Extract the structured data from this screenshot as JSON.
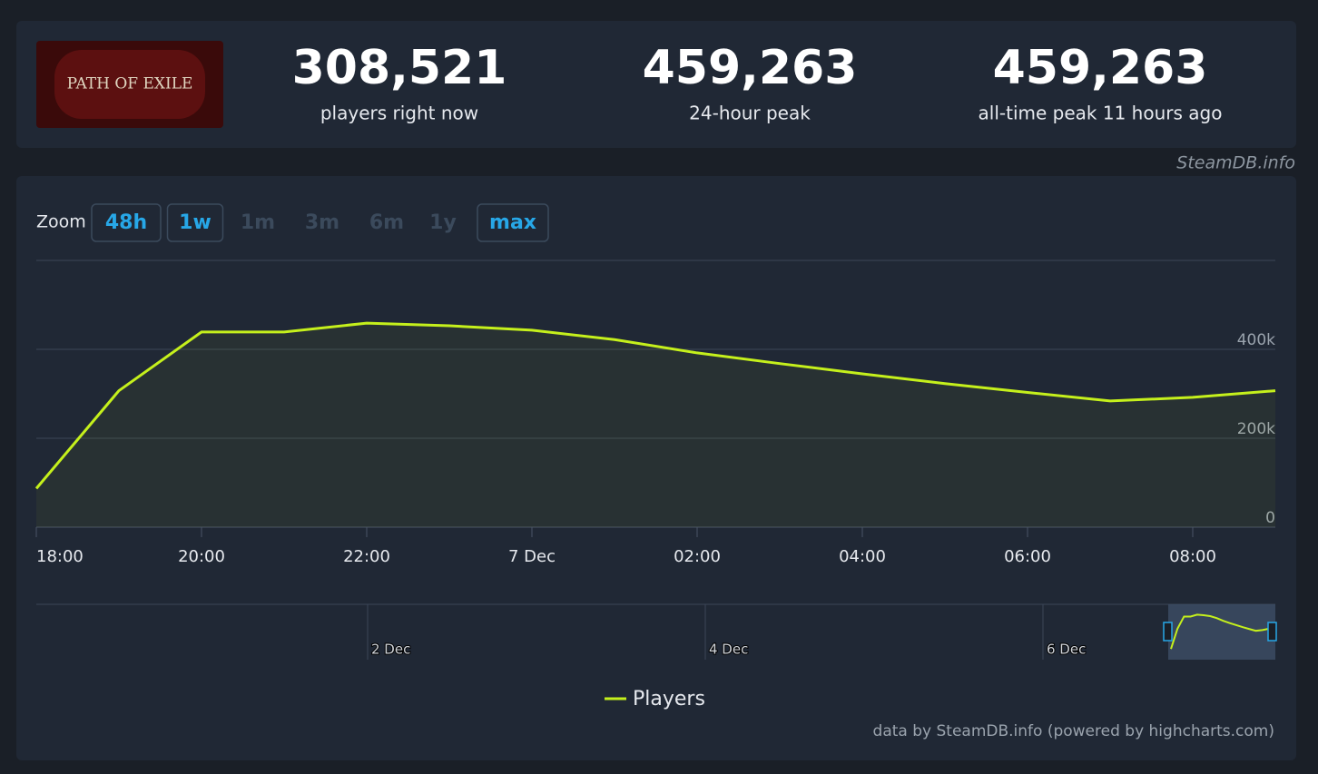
{
  "header": {
    "logo": "PATH OF EXILE",
    "stats": [
      {
        "value": "308,521",
        "label": "players right now"
      },
      {
        "value": "459,263",
        "label": "24-hour peak"
      },
      {
        "value": "459,263",
        "label": "all-time peak 11 hours ago"
      }
    ],
    "source": "SteamDB.info"
  },
  "zoom": {
    "label": "Zoom",
    "buttons": [
      {
        "label": "48h",
        "active": true
      },
      {
        "label": "1w",
        "active": true
      },
      {
        "label": "1m",
        "active": false
      },
      {
        "label": "3m",
        "active": false
      },
      {
        "label": "6m",
        "active": false
      },
      {
        "label": "1y",
        "active": false
      },
      {
        "label": "max",
        "active": true
      }
    ]
  },
  "chart_data": {
    "type": "line",
    "categories": [
      "18:00",
      null,
      "20:00",
      null,
      "22:00",
      null,
      "7 Dec",
      null,
      "02:00",
      null,
      "04:00",
      null,
      "06:00",
      null,
      "08:00",
      null
    ],
    "series": [
      {
        "name": "Players",
        "color": "#c5f01c",
        "values": [
          87000,
          307000,
          439000,
          439000,
          459000,
          453000,
          443000,
          422000,
          392000,
          368000,
          345000,
          323000,
          303000,
          284000,
          292000,
          307000
        ]
      }
    ],
    "ylim": [
      0,
      600000
    ],
    "yticks": [
      0,
      {
        "value": 200000,
        "label": "200k"
      },
      {
        "value": 400000,
        "label": "400k"
      }
    ],
    "grid": true
  },
  "navigator": {
    "dates": [
      "2 Dec",
      "4 Dec",
      "6 Dec"
    ]
  },
  "credits": "data by SteamDB.info (powered by highcharts.com)"
}
